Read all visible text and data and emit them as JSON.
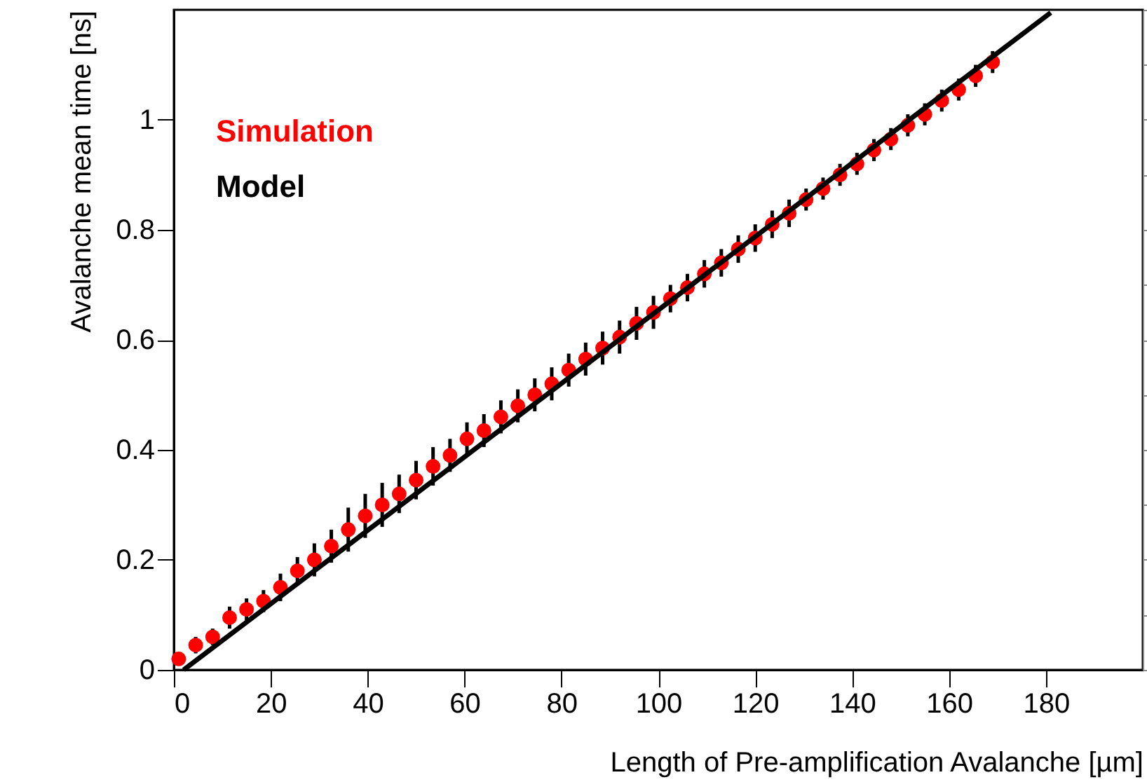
{
  "chart_data": {
    "type": "scatter",
    "xlabel": "Length of Pre-amplification Avalanche [µm]",
    "ylabel": "Avalanche mean time [ns]",
    "xlim": [
      0,
      200
    ],
    "ylim": [
      0,
      1.2
    ],
    "xticks": [
      0,
      20,
      40,
      60,
      80,
      100,
      120,
      140,
      160,
      180
    ],
    "yticks": [
      0,
      0.2,
      0.4,
      0.6,
      0.8,
      1
    ],
    "legend": "top left",
    "grid": false,
    "series": [
      {
        "name": "Simulation",
        "color": "#ff0000",
        "marker": "circle",
        "x": [
          1,
          4.5,
          8,
          11.5,
          15,
          18.5,
          22,
          25.5,
          29,
          32.5,
          36,
          39.5,
          43,
          46.5,
          50,
          53.5,
          57,
          60.5,
          64,
          67.5,
          71,
          74.5,
          78,
          81.5,
          85,
          88.5,
          92,
          95.5,
          99,
          102.5,
          106,
          109.5,
          113,
          116.5,
          120,
          123.5,
          127,
          130.5,
          134,
          137.5,
          141,
          144.5,
          148,
          151.5,
          155,
          158.5,
          162,
          165.5,
          169
        ],
        "values": [
          0.02,
          0.045,
          0.06,
          0.095,
          0.11,
          0.125,
          0.15,
          0.18,
          0.2,
          0.225,
          0.255,
          0.28,
          0.3,
          0.32,
          0.345,
          0.37,
          0.39,
          0.42,
          0.435,
          0.46,
          0.48,
          0.5,
          0.52,
          0.545,
          0.565,
          0.585,
          0.605,
          0.63,
          0.65,
          0.675,
          0.695,
          0.72,
          0.74,
          0.765,
          0.785,
          0.81,
          0.83,
          0.855,
          0.875,
          0.9,
          0.92,
          0.945,
          0.965,
          0.99,
          1.01,
          1.035,
          1.055,
          1.08,
          1.105
        ],
        "errors": [
          null,
          0.015,
          0.015,
          0.02,
          0.02,
          0.02,
          0.025,
          0.025,
          0.03,
          0.03,
          0.04,
          0.04,
          0.04,
          0.035,
          0.035,
          0.035,
          0.03,
          0.03,
          0.03,
          0.03,
          0.03,
          0.03,
          0.03,
          0.03,
          0.03,
          0.03,
          0.03,
          0.03,
          0.03,
          0.025,
          0.025,
          0.025,
          0.025,
          0.025,
          0.025,
          0.025,
          0.025,
          0.02,
          0.02,
          0.02,
          0.02,
          0.02,
          0.02,
          0.02,
          0.02,
          0.02,
          0.02,
          0.02,
          0.02
        ]
      },
      {
        "name": "Model",
        "color": "#000000",
        "type": "line",
        "x": [
          2,
          181
        ],
        "values": [
          0,
          1.195
        ]
      }
    ]
  }
}
